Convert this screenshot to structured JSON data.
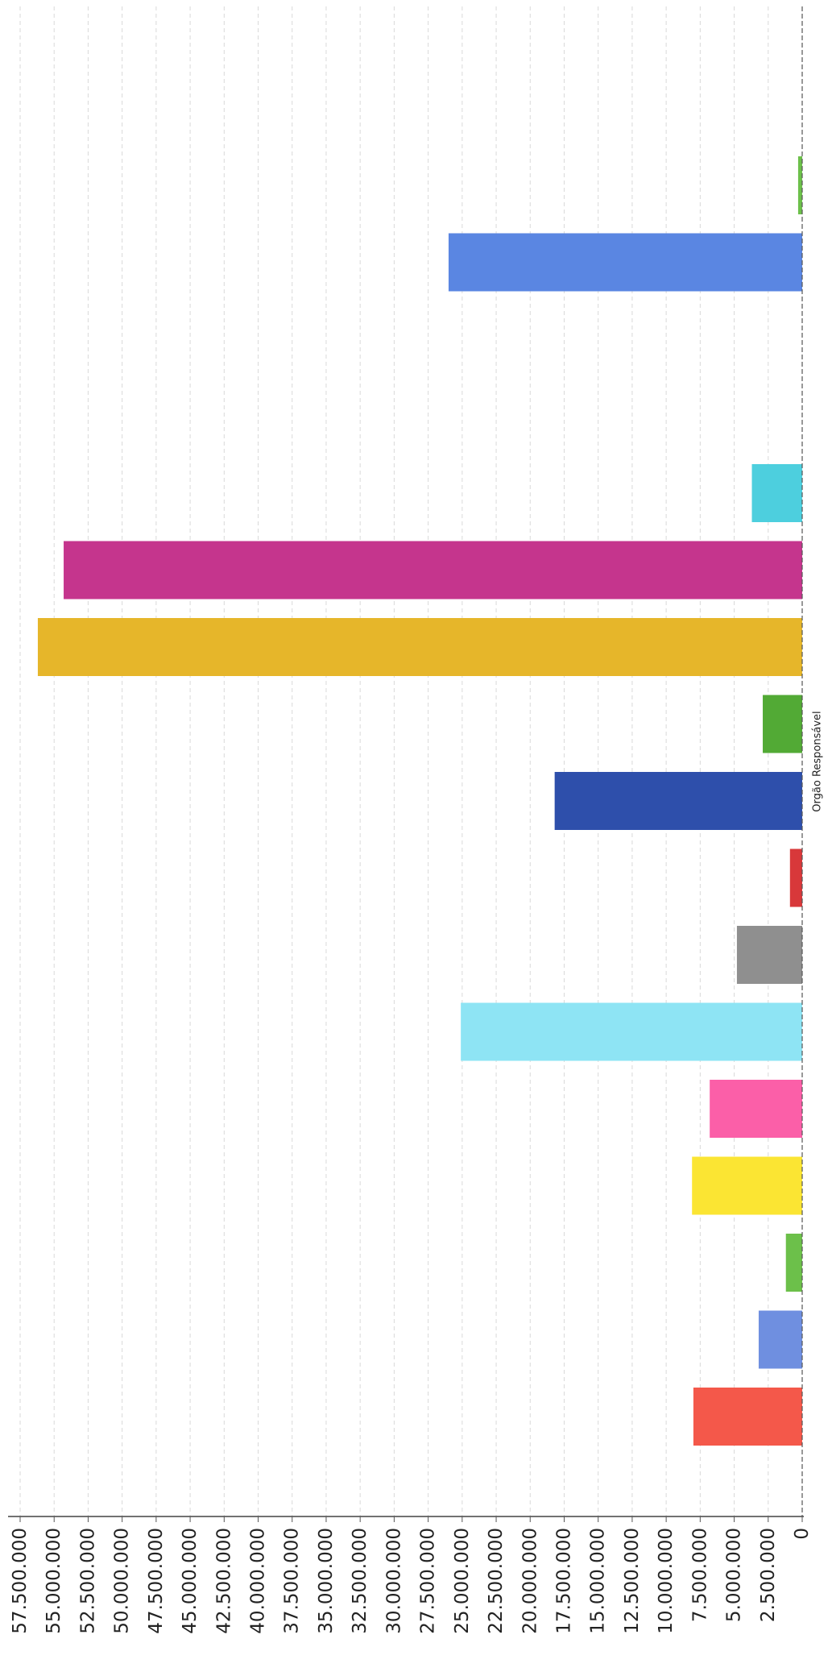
{
  "chart_data": {
    "type": "bar",
    "orientation": "rotated-vertical",
    "xlabel": "Orgão Responsável",
    "ylabel": "",
    "ylim": [
      0,
      57500000
    ],
    "ytick_labels": [
      "0",
      "2.500.000",
      "5.000.000",
      "7.500.000",
      "10.000.000",
      "12.500.000",
      "15.000.000",
      "17.500.000",
      "20.000.000",
      "22.500.000",
      "25.000.000",
      "27.500.000",
      "30.000.000",
      "32.500.000",
      "35.000.000",
      "37.500.000",
      "40.000.000",
      "42.500.000",
      "45.000.000",
      "47.500.000",
      "50.000.000",
      "52.500.000",
      "55.000.000",
      "57.500.000"
    ],
    "grid": true,
    "bars": [
      {
        "value": 8000000,
        "color": "#f4584a"
      },
      {
        "value": 3200000,
        "color": "#6f8fe0"
      },
      {
        "value": 1200000,
        "color": "#6cc04a"
      },
      {
        "value": 8100000,
        "color": "#fbe533"
      },
      {
        "value": 6800000,
        "color": "#fb5fa8"
      },
      {
        "value": 25100000,
        "color": "#8ee4f4"
      },
      {
        "value": 4800000,
        "color": "#8f8f8f"
      },
      {
        "value": 900000,
        "color": "#d8383a"
      },
      {
        "value": 18200000,
        "color": "#2e4fab"
      },
      {
        "value": 2900000,
        "color": "#52aa35"
      },
      {
        "value": 56200000,
        "color": "#e6b62a"
      },
      {
        "value": 54300000,
        "color": "#c5358d"
      },
      {
        "value": 3700000,
        "color": "#4dcfde"
      },
      {
        "value": 0,
        "color": "#cccccc"
      },
      {
        "value": 0,
        "color": "#cccccc"
      },
      {
        "value": 26000000,
        "color": "#5a86e2"
      },
      {
        "value": 300000,
        "color": "#6cc04a"
      }
    ]
  }
}
